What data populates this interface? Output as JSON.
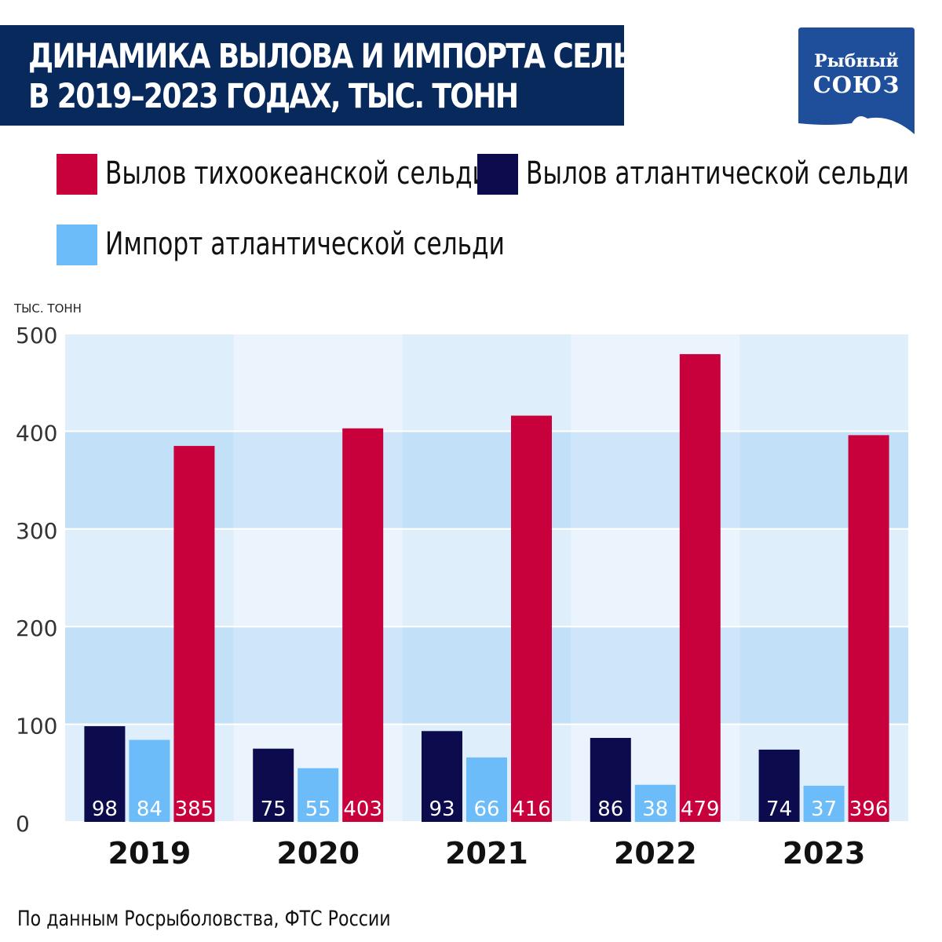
{
  "title": {
    "line1": "ДИНАМИКА ВЫЛОВА И ИМПОРТА СЕЛЬДИ",
    "line2": "В 2019–2023 ГОДАХ, ТЫС. ТОНН"
  },
  "logo": {
    "line1": "Рыбный",
    "line2": "СОЮЗ"
  },
  "colors": {
    "title_bg": "#08295c",
    "pacific": "#c8003c",
    "atlantic_catch": "#0b0b4e",
    "atlantic_import": "#6bbcf8",
    "logo": "#1f4e9a"
  },
  "legend": [
    {
      "label": "Вылов тихоокеанской сельди",
      "color": "#c8003c"
    },
    {
      "label": "Вылов атлантической сельди",
      "color": "#0b0b4e"
    },
    {
      "label": "Импорт атлантической сельди",
      "color": "#6bbcf8"
    }
  ],
  "chart_data": {
    "type": "bar",
    "y_unit_label": "тыс. тонн",
    "y_ticks": [
      "0",
      "100",
      "200",
      "300",
      "400",
      "500"
    ],
    "ylim": [
      0,
      500
    ],
    "categories": [
      "2019",
      "2020",
      "2021",
      "2022",
      "2023"
    ],
    "series": [
      {
        "name": "Вылов атлантической сельди",
        "color": "#0b0b4e",
        "values": [
          98,
          75,
          93,
          86,
          74
        ]
      },
      {
        "name": "Импорт атлантической сельди",
        "color": "#6bbcf8",
        "values": [
          84,
          55,
          66,
          38,
          37
        ]
      },
      {
        "name": "Вылов тихоокеанской сельди",
        "color": "#c8003c",
        "values": [
          385,
          403,
          416,
          479,
          396
        ]
      }
    ]
  },
  "source": "По данным Росрыболовства, ФТС России"
}
